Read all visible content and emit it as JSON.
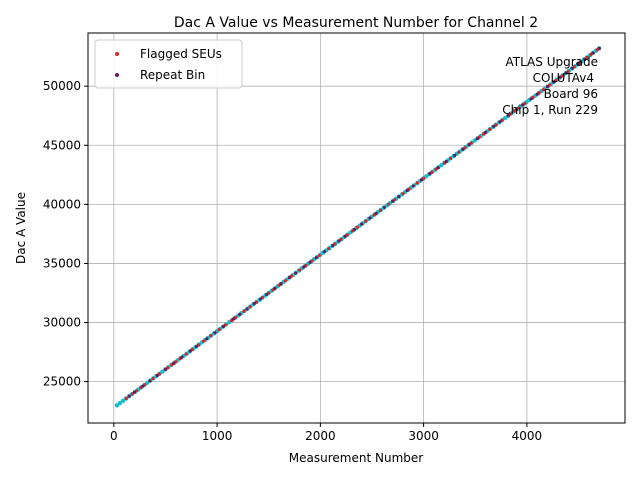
{
  "chart_data": {
    "type": "scatter",
    "title": "Dac A Value vs Measurement Number for Channel 2",
    "xlabel": "Measurement Number",
    "ylabel": "Dac A Value",
    "xlim": [
      -250,
      4950
    ],
    "ylim": [
      21500,
      54500
    ],
    "xticks": [
      0,
      1000,
      2000,
      3000,
      4000
    ],
    "yticks": [
      25000,
      30000,
      35000,
      40000,
      45000,
      50000
    ],
    "grid": true,
    "legend_position": "top-left",
    "annotation": [
      "ATLAS Upgrade",
      "COLUTAv4",
      "Board 96",
      "Chip 1, Run 229"
    ],
    "series": [
      {
        "name": "",
        "color": "#17becf",
        "x_start": 30,
        "x_end": 4700,
        "y_start": 23000,
        "y_end": 53200,
        "points": 160
      },
      {
        "name": "Flagged SEUs",
        "color": "#d62728",
        "x": [
          120,
          180,
          220,
          260,
          300,
          380,
          440,
          520,
          560,
          600,
          640,
          700,
          760,
          820,
          870,
          940,
          1020,
          1080,
          1140,
          1180,
          1260,
          1320,
          1380,
          1440,
          1500,
          1540,
          1600,
          1660,
          1720,
          1800,
          1860,
          1920,
          1990,
          2080,
          2140,
          2200,
          2260,
          2310,
          2360,
          2440,
          2520,
          2580,
          2660,
          2720,
          2800,
          2860,
          2940,
          3000,
          3080,
          3120,
          3200,
          3260,
          3340,
          3400,
          3460,
          3540,
          3580,
          3640,
          3700,
          3760,
          3840,
          3880,
          3920,
          3980,
          4060,
          4120,
          4160,
          4220,
          4280,
          4340,
          4400,
          4460,
          4520,
          4580,
          4620,
          4680
        ],
        "y_from_trend": true
      },
      {
        "name": "Repeat Bin",
        "color": "#6b1a56",
        "x": [
          150,
          200,
          280,
          350,
          420,
          500,
          580,
          660,
          740,
          800,
          900,
          980,
          1060,
          1160,
          1220,
          1290,
          1360,
          1420,
          1480,
          1560,
          1620,
          1700,
          1760,
          1840,
          1900,
          1960,
          2040,
          2120,
          2180,
          2240,
          2330,
          2400,
          2480,
          2540,
          2620,
          2700,
          2760,
          2840,
          2900,
          2980,
          3060,
          3140,
          3220,
          3300,
          3380,
          3440,
          3520,
          3600,
          3680,
          3740,
          3820,
          3900,
          3960,
          4040,
          4100,
          4200,
          4260,
          4320,
          4380,
          4440,
          4500,
          4560,
          4640,
          4700
        ],
        "y_from_trend": true
      }
    ]
  }
}
